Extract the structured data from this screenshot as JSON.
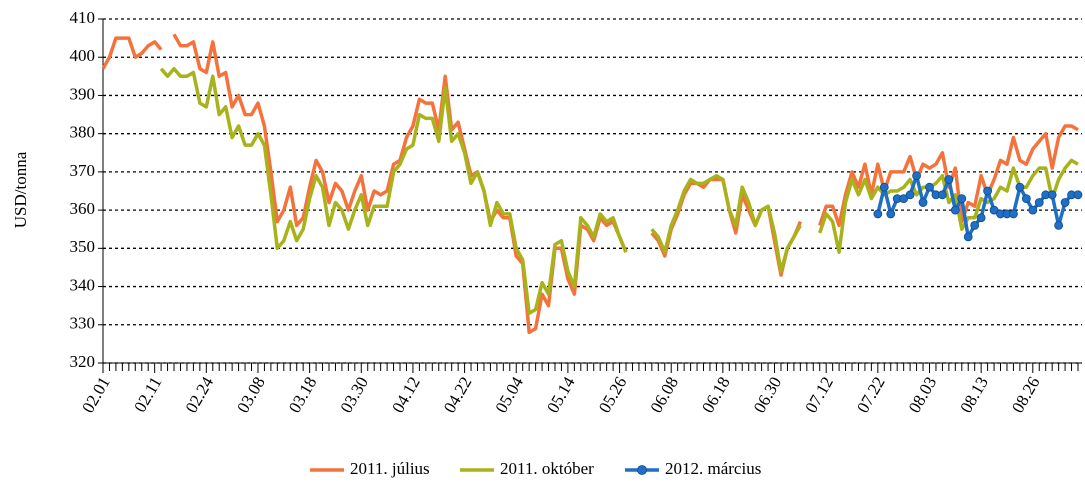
{
  "chart_data": {
    "type": "line",
    "ylabel": "USD/tonna",
    "ylim": [
      320,
      410
    ],
    "yticks": [
      320,
      330,
      340,
      350,
      360,
      370,
      380,
      390,
      400,
      410
    ],
    "grid": true,
    "legend": "bottom",
    "categories": [
      "02.01",
      null,
      null,
      null,
      null,
      null,
      null,
      null,
      "02.11",
      null,
      null,
      null,
      null,
      null,
      null,
      null,
      "02.24",
      null,
      null,
      null,
      null,
      null,
      null,
      null,
      "03.08",
      null,
      null,
      null,
      null,
      null,
      null,
      null,
      "03.18",
      null,
      null,
      null,
      null,
      null,
      null,
      null,
      "03.30",
      null,
      null,
      null,
      null,
      null,
      null,
      null,
      "04.12",
      null,
      null,
      null,
      null,
      null,
      null,
      null,
      "04.22",
      null,
      null,
      null,
      null,
      null,
      null,
      null,
      "05.04",
      null,
      null,
      null,
      null,
      null,
      null,
      null,
      "05.14",
      null,
      null,
      null,
      null,
      null,
      null,
      null,
      "05.26",
      null,
      null,
      null,
      null,
      null,
      null,
      null,
      "06.08",
      null,
      null,
      null,
      null,
      null,
      null,
      null,
      "06.18",
      null,
      null,
      null,
      null,
      null,
      null,
      null,
      "06.30",
      null,
      null,
      null,
      null,
      null,
      null,
      null,
      "07.12",
      null,
      null,
      null,
      null,
      null,
      null,
      null,
      "07.22",
      null,
      null,
      null,
      null,
      null,
      null,
      null,
      "08.03",
      null,
      null,
      null,
      null,
      null,
      null,
      null,
      "08.13",
      null,
      null,
      null,
      null,
      null,
      null,
      null,
      "08.26",
      null,
      null,
      null,
      null,
      null,
      null,
      null
    ],
    "series": [
      {
        "name": "2011. július",
        "color": "#f4733c",
        "markers": false,
        "values": [
          397,
          400,
          405,
          405,
          405,
          400,
          401,
          403,
          404,
          402,
          null,
          406,
          403,
          403,
          404,
          397,
          396,
          404,
          395,
          396,
          387,
          390,
          385,
          385,
          388,
          382,
          370,
          357,
          360,
          366,
          356,
          358,
          366,
          373,
          370,
          362,
          367,
          365,
          360,
          365,
          369,
          360,
          365,
          364,
          365,
          372,
          373,
          379,
          382,
          389,
          388,
          388,
          381,
          395,
          381,
          383,
          376,
          369,
          370,
          365,
          357,
          360,
          358,
          358,
          348,
          346,
          328,
          329,
          338,
          335,
          350,
          350,
          342,
          338,
          356,
          355,
          352,
          358,
          356,
          357,
          353,
          349,
          null,
          null,
          null,
          354,
          352,
          348,
          355,
          359,
          364,
          367,
          367,
          366,
          368,
          368,
          368,
          360,
          354,
          364,
          360,
          356,
          360,
          361,
          352,
          343,
          350,
          353,
          357,
          null,
          null,
          356,
          361,
          361,
          356,
          364,
          370,
          366,
          372,
          364,
          372,
          365,
          370,
          370,
          370,
          374,
          368,
          372,
          371,
          372,
          375,
          366,
          371,
          357,
          362,
          361,
          369,
          364,
          368,
          373,
          372,
          379,
          373,
          372,
          376,
          378,
          380,
          371,
          379,
          382,
          382,
          381
        ]
      },
      {
        "name": "2011. október",
        "color": "#a8b21a",
        "markers": false,
        "values": [
          null,
          null,
          null,
          null,
          null,
          null,
          null,
          null,
          null,
          397,
          395,
          397,
          395,
          395,
          396,
          388,
          387,
          395,
          385,
          387,
          379,
          382,
          377,
          377,
          380,
          377,
          364,
          350,
          352,
          357,
          352,
          355,
          363,
          369,
          366,
          356,
          362,
          360,
          355,
          360,
          364,
          356,
          361,
          361,
          361,
          370,
          372,
          376,
          377,
          385,
          384,
          384,
          378,
          392,
          378,
          380,
          375,
          367,
          370,
          365,
          356,
          362,
          359,
          359,
          350,
          347,
          333,
          334,
          341,
          338,
          351,
          352,
          344,
          340,
          358,
          356,
          353,
          359,
          357,
          358,
          353,
          349,
          null,
          null,
          null,
          355,
          353,
          349,
          356,
          360,
          365,
          368,
          367,
          367,
          368,
          369,
          368,
          360,
          356,
          366,
          362,
          356,
          360,
          361,
          354,
          344,
          350,
          353,
          356,
          null,
          null,
          354,
          359,
          357,
          349,
          362,
          368,
          364,
          368,
          363,
          366,
          364,
          365,
          365,
          366,
          368,
          364,
          366,
          366,
          367,
          369,
          362,
          364,
          355,
          358,
          358,
          363,
          362,
          363,
          366,
          365,
          371,
          366,
          366,
          369,
          371,
          371,
          363,
          368,
          371,
          373,
          372
        ]
      },
      {
        "name": "2012. március",
        "color": "#1f6fc6",
        "markers": true,
        "values": [
          null,
          null,
          null,
          null,
          null,
          null,
          null,
          null,
          null,
          null,
          null,
          null,
          null,
          null,
          null,
          null,
          null,
          null,
          null,
          null,
          null,
          null,
          null,
          null,
          null,
          null,
          null,
          null,
          null,
          null,
          null,
          null,
          null,
          null,
          null,
          null,
          null,
          null,
          null,
          null,
          null,
          null,
          null,
          null,
          null,
          null,
          null,
          null,
          null,
          null,
          null,
          null,
          null,
          null,
          null,
          null,
          null,
          null,
          null,
          null,
          null,
          null,
          null,
          null,
          null,
          null,
          null,
          null,
          null,
          null,
          null,
          null,
          null,
          null,
          null,
          null,
          null,
          null,
          null,
          null,
          null,
          null,
          null,
          null,
          null,
          null,
          null,
          null,
          null,
          null,
          null,
          null,
          null,
          null,
          null,
          null,
          null,
          null,
          null,
          null,
          null,
          null,
          null,
          null,
          null,
          null,
          null,
          null,
          null,
          null,
          null,
          null,
          null,
          null,
          null,
          null,
          null,
          null,
          null,
          null,
          359,
          366,
          359,
          363,
          363,
          364,
          369,
          362,
          366,
          364,
          364,
          368,
          360,
          363,
          353,
          356,
          358,
          365,
          360,
          359,
          359,
          359,
          366,
          363,
          360,
          362,
          364,
          364,
          356,
          362,
          364,
          364
        ]
      }
    ]
  }
}
